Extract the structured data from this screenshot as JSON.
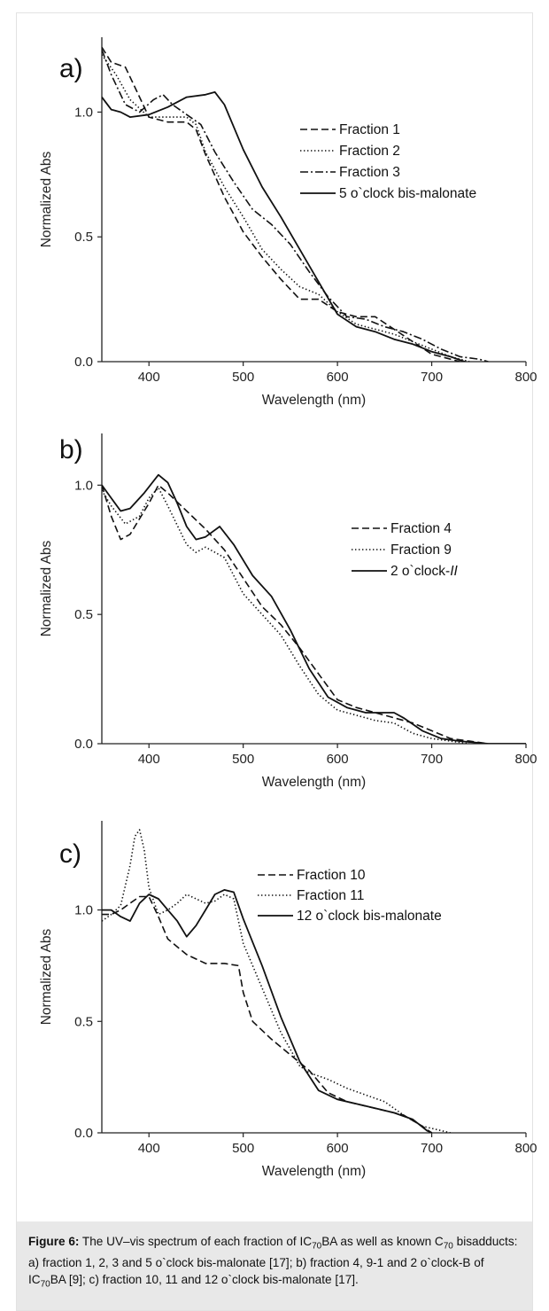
{
  "caption": {
    "figure_label": "Figure 6:",
    "parts": [
      {
        "t": " The UV–vis spectrum of each fraction of IC"
      },
      {
        "t": "70",
        "sub": true
      },
      {
        "t": "BA as well as known C"
      },
      {
        "t": "70",
        "sub": true
      },
      {
        "t": " bisadducts: a) fraction 1, 2, 3 and 5 o`clock bis-malonate [17]; b) fraction 4, 9-1 and 2 o`clock-B of IC"
      },
      {
        "t": "70",
        "sub": true
      },
      {
        "t": "BA [9]; c) fraction 10, 11 and 12 o`clock bis-malonate [17]."
      }
    ]
  },
  "chart_data": [
    {
      "type": "line",
      "panel_label": "a)",
      "xlabel": "Wavelength (nm)",
      "ylabel": "Normalized Abs",
      "xlim": [
        350,
        800
      ],
      "ylim": [
        0,
        1.3
      ],
      "xticks": [
        400,
        500,
        600,
        700,
        800
      ],
      "yticks": [
        0.0,
        0.5,
        1.0
      ],
      "ytick_labels": [
        "0.0",
        "0.5",
        "1.0"
      ],
      "legend_position": "top-right",
      "series": [
        {
          "name": "Fraction 1",
          "style": "dashed",
          "x": [
            350,
            360,
            375,
            385,
            400,
            420,
            440,
            450,
            460,
            480,
            500,
            520,
            540,
            550,
            560,
            580,
            600,
            620,
            640,
            660,
            680,
            700,
            720,
            730
          ],
          "y": [
            1.26,
            1.2,
            1.18,
            1.1,
            0.98,
            0.96,
            0.96,
            0.93,
            0.83,
            0.66,
            0.52,
            0.42,
            0.33,
            0.29,
            0.25,
            0.25,
            0.2,
            0.18,
            0.18,
            0.13,
            0.08,
            0.03,
            0.01,
            0.0
          ]
        },
        {
          "name": "Fraction 2",
          "style": "dotted",
          "x": [
            350,
            365,
            380,
            400,
            420,
            440,
            450,
            460,
            480,
            500,
            520,
            540,
            560,
            580,
            600,
            620,
            640,
            660,
            680,
            700,
            720,
            740
          ],
          "y": [
            1.23,
            1.15,
            1.05,
            0.98,
            0.98,
            0.98,
            0.95,
            0.84,
            0.7,
            0.58,
            0.45,
            0.37,
            0.3,
            0.27,
            0.2,
            0.15,
            0.13,
            0.11,
            0.08,
            0.05,
            0.02,
            0.0
          ]
        },
        {
          "name": "Fraction 3",
          "style": "dashdot",
          "x": [
            350,
            360,
            375,
            390,
            405,
            415,
            425,
            440,
            455,
            470,
            490,
            510,
            530,
            550,
            570,
            590,
            610,
            630,
            650,
            670,
            690,
            710,
            730,
            750,
            760
          ],
          "y": [
            1.25,
            1.15,
            1.03,
            1.0,
            1.05,
            1.07,
            1.03,
            0.99,
            0.95,
            0.84,
            0.72,
            0.61,
            0.55,
            0.47,
            0.36,
            0.26,
            0.18,
            0.17,
            0.14,
            0.12,
            0.09,
            0.05,
            0.02,
            0.01,
            0.0
          ]
        },
        {
          "name": "5 o`clock bis-malonate",
          "style": "solid",
          "x": [
            350,
            360,
            370,
            380,
            400,
            420,
            440,
            460,
            470,
            480,
            500,
            520,
            540,
            560,
            580,
            600,
            620,
            640,
            660,
            680,
            700,
            720,
            735
          ],
          "y": [
            1.06,
            1.01,
            1.0,
            0.98,
            0.99,
            1.02,
            1.06,
            1.07,
            1.08,
            1.03,
            0.85,
            0.7,
            0.58,
            0.45,
            0.32,
            0.19,
            0.14,
            0.12,
            0.09,
            0.07,
            0.04,
            0.02,
            0.0
          ]
        }
      ]
    },
    {
      "type": "line",
      "panel_label": "b)",
      "xlabel": "Wavelength (nm)",
      "ylabel": "Normalized Abs",
      "xlim": [
        350,
        800
      ],
      "ylim": [
        0,
        1.2
      ],
      "xticks": [
        400,
        500,
        600,
        700,
        800
      ],
      "yticks": [
        0.0,
        0.5,
        1.0
      ],
      "ytick_labels": [
        "0.0",
        "0.5",
        "1.0"
      ],
      "legend_position": "right",
      "series": [
        {
          "name": "Fraction 4",
          "style": "dashed",
          "x": [
            350,
            360,
            370,
            380,
            400,
            410,
            420,
            440,
            460,
            480,
            500,
            520,
            540,
            560,
            580,
            600,
            620,
            640,
            660,
            680,
            700,
            720,
            740,
            760
          ],
          "y": [
            1.0,
            0.88,
            0.79,
            0.81,
            0.93,
            1.0,
            0.97,
            0.9,
            0.83,
            0.75,
            0.64,
            0.53,
            0.46,
            0.37,
            0.27,
            0.17,
            0.14,
            0.12,
            0.1,
            0.08,
            0.05,
            0.02,
            0.01,
            0.0
          ]
        },
        {
          "name": "Fraction 9",
          "style": "dotted",
          "x": [
            350,
            360,
            375,
            390,
            400,
            410,
            420,
            440,
            450,
            460,
            480,
            500,
            520,
            540,
            560,
            580,
            600,
            620,
            640,
            660,
            670,
            680,
            700,
            720,
            740
          ],
          "y": [
            0.98,
            0.92,
            0.85,
            0.88,
            0.95,
            0.99,
            0.92,
            0.77,
            0.74,
            0.76,
            0.72,
            0.58,
            0.5,
            0.42,
            0.3,
            0.19,
            0.13,
            0.11,
            0.09,
            0.08,
            0.06,
            0.04,
            0.02,
            0.01,
            0.0
          ]
        },
        {
          "name": "2 o`clock-II",
          "style": "solid",
          "x": [
            350,
            360,
            370,
            380,
            395,
            410,
            420,
            430,
            440,
            450,
            460,
            475,
            490,
            510,
            530,
            550,
            570,
            590,
            610,
            630,
            650,
            660,
            670,
            690,
            710,
            730,
            760,
            800
          ],
          "y": [
            1.0,
            0.95,
            0.9,
            0.91,
            0.97,
            1.04,
            1.01,
            0.93,
            0.84,
            0.79,
            0.8,
            0.84,
            0.77,
            0.65,
            0.57,
            0.44,
            0.29,
            0.18,
            0.14,
            0.12,
            0.12,
            0.12,
            0.1,
            0.05,
            0.02,
            0.01,
            0.0,
            0.0
          ]
        }
      ]
    },
    {
      "type": "line",
      "panel_label": "c)",
      "xlabel": "Wavelength (nm)",
      "ylabel": "Normalized Abs",
      "xlim": [
        350,
        800
      ],
      "ylim": [
        0,
        1.4
      ],
      "xticks": [
        400,
        500,
        600,
        700,
        800
      ],
      "yticks": [
        0.0,
        0.5,
        1.0
      ],
      "ytick_labels": [
        "0.0",
        "0.5",
        "1.0"
      ],
      "legend_position": "top-right",
      "series": [
        {
          "name": "Fraction 10",
          "style": "dashed",
          "x": [
            350,
            360,
            370,
            380,
            390,
            400,
            410,
            420,
            440,
            460,
            480,
            495,
            500,
            510,
            530,
            550,
            570,
            590,
            610,
            630,
            650,
            670,
            690,
            700
          ],
          "y": [
            0.98,
            0.98,
            1.0,
            1.03,
            1.06,
            1.06,
            0.97,
            0.87,
            0.8,
            0.76,
            0.76,
            0.75,
            0.63,
            0.5,
            0.42,
            0.35,
            0.28,
            0.18,
            0.14,
            0.12,
            0.1,
            0.08,
            0.03,
            0.0
          ]
        },
        {
          "name": "Fraction 11",
          "style": "dotted",
          "x": [
            350,
            360,
            370,
            380,
            385,
            390,
            395,
            400,
            410,
            420,
            430,
            440,
            450,
            460,
            470,
            480,
            490,
            500,
            520,
            540,
            560,
            570,
            590,
            610,
            630,
            650,
            670,
            690,
            710,
            720
          ],
          "y": [
            0.95,
            0.98,
            1.02,
            1.2,
            1.33,
            1.36,
            1.27,
            1.1,
            0.98,
            1.0,
            1.03,
            1.07,
            1.05,
            1.03,
            1.04,
            1.07,
            1.05,
            0.85,
            0.65,
            0.45,
            0.3,
            0.27,
            0.24,
            0.2,
            0.17,
            0.14,
            0.08,
            0.03,
            0.01,
            0.0
          ]
        },
        {
          "name": "12 o`clock bis-malonate",
          "style": "solid",
          "x": [
            350,
            360,
            370,
            380,
            390,
            400,
            410,
            420,
            430,
            440,
            450,
            460,
            470,
            480,
            490,
            500,
            520,
            540,
            560,
            580,
            600,
            620,
            640,
            660,
            680,
            695,
            700
          ],
          "y": [
            1.0,
            1.0,
            0.97,
            0.95,
            1.03,
            1.07,
            1.05,
            1.0,
            0.95,
            0.88,
            0.93,
            1.0,
            1.07,
            1.09,
            1.08,
            0.96,
            0.75,
            0.52,
            0.32,
            0.19,
            0.15,
            0.13,
            0.11,
            0.09,
            0.06,
            0.01,
            0.0
          ]
        }
      ]
    }
  ]
}
